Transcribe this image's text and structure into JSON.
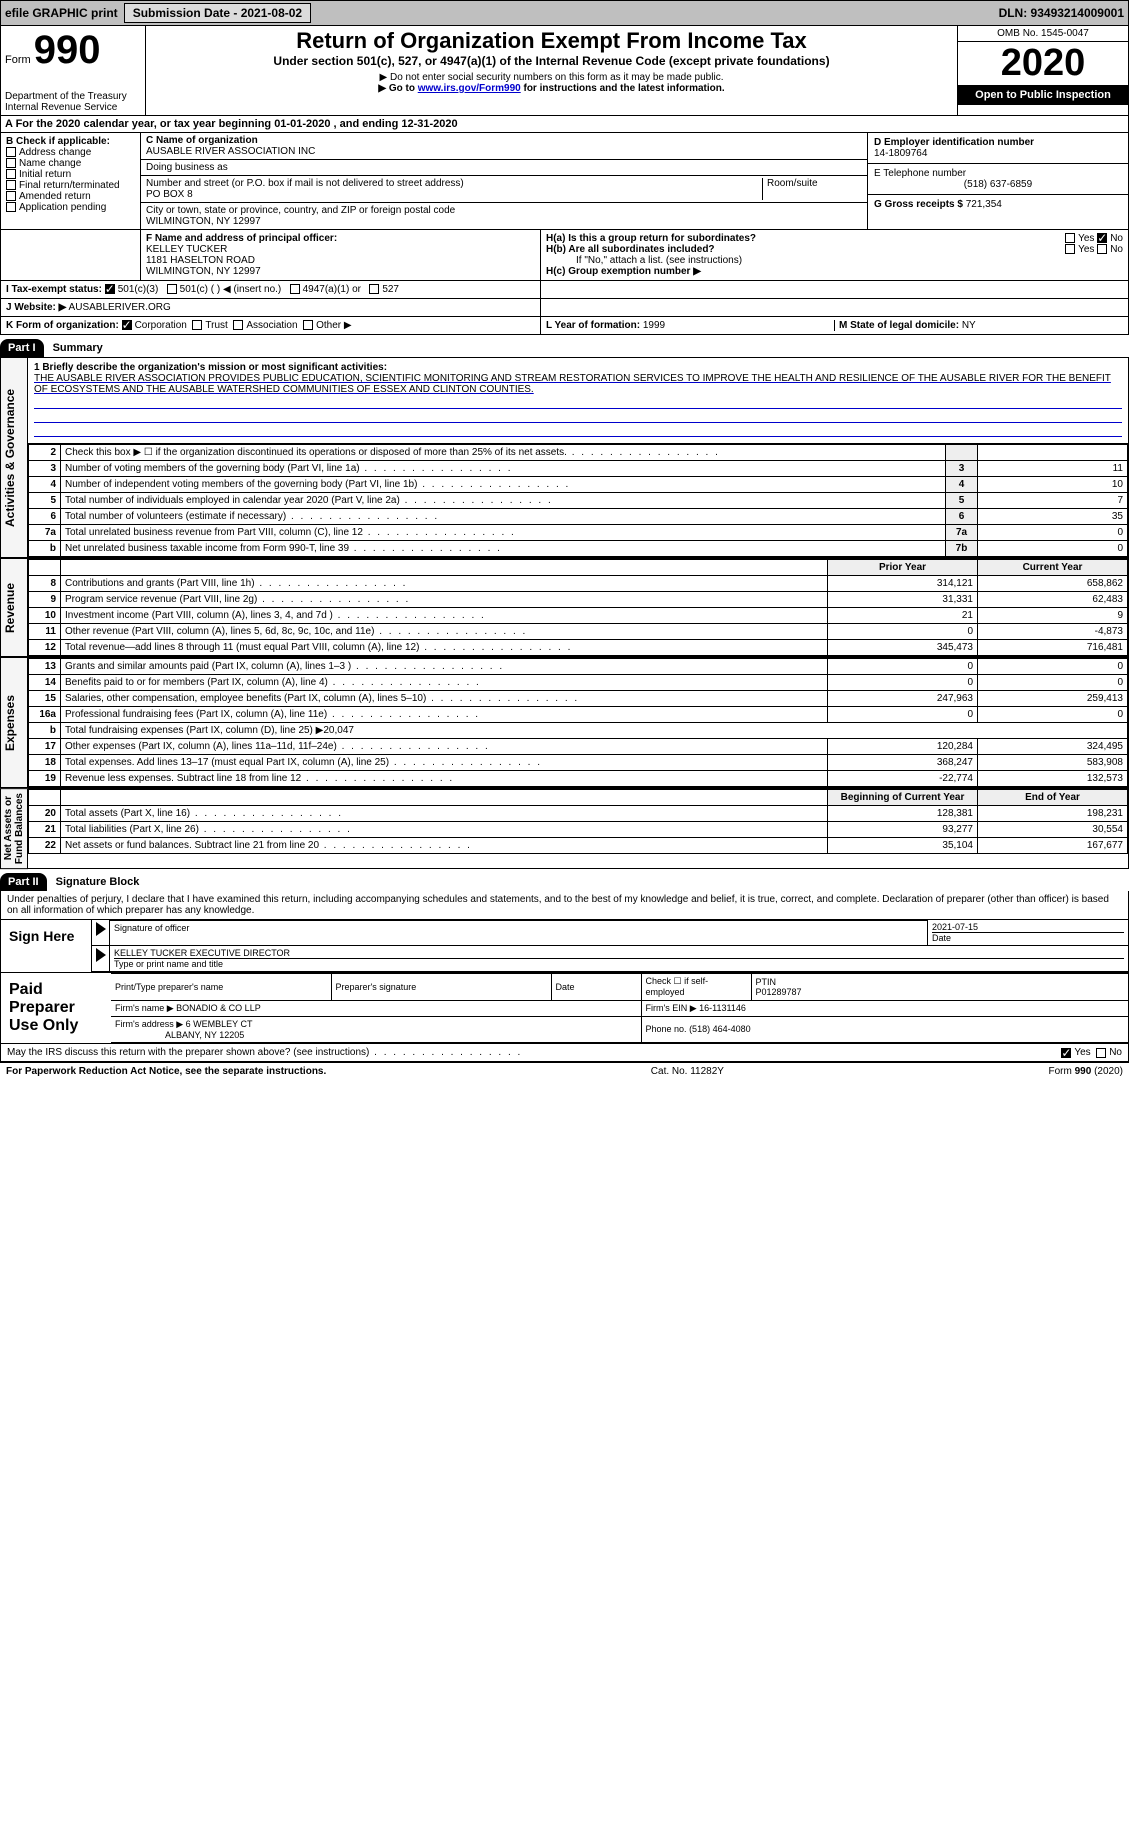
{
  "topbar": {
    "efile": "efile GRAPHIC print",
    "submission_label": "Submission Date - 2021-08-02",
    "dln": "DLN: 93493214009001"
  },
  "header": {
    "form_label": "Form",
    "form_number": "990",
    "dept": "Department of the Treasury\nInternal Revenue Service",
    "title": "Return of Organization Exempt From Income Tax",
    "subtitle": "Under section 501(c), 527, or 4947(a)(1) of the Internal Revenue Code (except private foundations)",
    "note1": "▶ Do not enter social security numbers on this form as it may be made public.",
    "note2_pre": "▶ Go to ",
    "note2_link": "www.irs.gov/Form990",
    "note2_post": " for instructions and the latest information.",
    "omb": "OMB No. 1545-0047",
    "year": "2020",
    "open": "Open to Public Inspection"
  },
  "sectionA": "A  For the 2020 calendar year, or tax year beginning 01-01-2020    , and ending 12-31-2020",
  "B": {
    "heading": "B Check if applicable:",
    "items": [
      "Address change",
      "Name change",
      "Initial return",
      "Final return/terminated",
      "Amended return",
      "Application pending"
    ]
  },
  "C": {
    "name_label": "C Name of organization",
    "name": "AUSABLE RIVER ASSOCIATION INC",
    "dba_label": "Doing business as",
    "dba": "",
    "addr_label": "Number and street (or P.O. box if mail is not delivered to street address)",
    "room_label": "Room/suite",
    "addr": "PO BOX 8",
    "city_label": "City or town, state or province, country, and ZIP or foreign postal code",
    "city": "WILMINGTON, NY  12997"
  },
  "D": {
    "label": "D Employer identification number",
    "value": "14-1809764"
  },
  "E": {
    "label": "E Telephone number",
    "value": "(518) 637-6859"
  },
  "G": {
    "label": "G Gross receipts $",
    "value": "721,354"
  },
  "F": {
    "label": "F  Name and address of principal officer:",
    "name": "KELLEY TUCKER",
    "addr1": "1181 HASELTON ROAD",
    "addr2": "WILMINGTON, NY  12997"
  },
  "H": {
    "a": "H(a)  Is this a group return for subordinates?",
    "b": "H(b)  Are all subordinates included?",
    "b_note": "If \"No,\" attach a list. (see instructions)",
    "c": "H(c)  Group exemption number ▶",
    "yes": "Yes",
    "no": "No"
  },
  "I": {
    "label": "I    Tax-exempt status:",
    "opts": [
      "501(c)(3)",
      "501(c) (  ) ◀ (insert no.)",
      "4947(a)(1) or",
      "527"
    ]
  },
  "J": {
    "label": "J   Website: ▶",
    "value": "AUSABLERIVER.ORG"
  },
  "K": {
    "label": "K Form of organization:",
    "opts": [
      "Corporation",
      "Trust",
      "Association",
      "Other ▶"
    ]
  },
  "L": {
    "label": "L Year of formation:",
    "value": "1999"
  },
  "M": {
    "label": "M State of legal domicile:",
    "value": "NY"
  },
  "part1": {
    "header": "Part I",
    "title": "Summary",
    "line1_label": "1   Briefly describe the organization's mission or most significant activities:",
    "mission": "THE AUSABLE RIVER ASSOCIATION PROVIDES PUBLIC EDUCATION, SCIENTIFIC MONITORING AND STREAM RESTORATION SERVICES TO IMPROVE THE HEALTH AND RESILIENCE OF THE AUSABLE RIVER FOR THE BENEFIT OF ECOSYSTEMS AND THE AUSABLE WATERSHED COMMUNITIES OF ESSEX AND CLINTON COUNTIES.",
    "vtabs": {
      "gov": "Activities & Governance",
      "rev": "Revenue",
      "exp": "Expenses",
      "net": "Net Assets or\nFund Balances"
    },
    "gov_lines": [
      {
        "n": "2",
        "t": "Check this box ▶ ☐ if the organization discontinued its operations or disposed of more than 25% of its net assets.",
        "c": "",
        "v": ""
      },
      {
        "n": "3",
        "t": "Number of voting members of the governing body (Part VI, line 1a)",
        "c": "3",
        "v": "11"
      },
      {
        "n": "4",
        "t": "Number of independent voting members of the governing body (Part VI, line 1b)",
        "c": "4",
        "v": "10"
      },
      {
        "n": "5",
        "t": "Total number of individuals employed in calendar year 2020 (Part V, line 2a)",
        "c": "5",
        "v": "7"
      },
      {
        "n": "6",
        "t": "Total number of volunteers (estimate if necessary)",
        "c": "6",
        "v": "35"
      },
      {
        "n": "7a",
        "t": "Total unrelated business revenue from Part VIII, column (C), line 12",
        "c": "7a",
        "v": "0"
      },
      {
        "n": "b",
        "t": "Net unrelated business taxable income from Form 990-T, line 39",
        "c": "7b",
        "v": "0"
      }
    ],
    "col_hdr_prior": "Prior Year",
    "col_hdr_current": "Current Year",
    "rev_lines": [
      {
        "n": "8",
        "t": "Contributions and grants (Part VIII, line 1h)",
        "p": "314,121",
        "c": "658,862"
      },
      {
        "n": "9",
        "t": "Program service revenue (Part VIII, line 2g)",
        "p": "31,331",
        "c": "62,483"
      },
      {
        "n": "10",
        "t": "Investment income (Part VIII, column (A), lines 3, 4, and 7d )",
        "p": "21",
        "c": "9"
      },
      {
        "n": "11",
        "t": "Other revenue (Part VIII, column (A), lines 5, 6d, 8c, 9c, 10c, and 11e)",
        "p": "0",
        "c": "-4,873"
      },
      {
        "n": "12",
        "t": "Total revenue—add lines 8 through 11 (must equal Part VIII, column (A), line 12)",
        "p": "345,473",
        "c": "716,481"
      }
    ],
    "exp_lines": [
      {
        "n": "13",
        "t": "Grants and similar amounts paid (Part IX, column (A), lines 1–3 )",
        "p": "0",
        "c": "0"
      },
      {
        "n": "14",
        "t": "Benefits paid to or for members (Part IX, column (A), line 4)",
        "p": "0",
        "c": "0"
      },
      {
        "n": "15",
        "t": "Salaries, other compensation, employee benefits (Part IX, column (A), lines 5–10)",
        "p": "247,963",
        "c": "259,413"
      },
      {
        "n": "16a",
        "t": "Professional fundraising fees (Part IX, column (A), line 11e)",
        "p": "0",
        "c": "0"
      },
      {
        "n": "b",
        "t": "Total fundraising expenses (Part IX, column (D), line 25) ▶20,047",
        "p": "",
        "c": ""
      },
      {
        "n": "17",
        "t": "Other expenses (Part IX, column (A), lines 11a–11d, 11f–24e)",
        "p": "120,284",
        "c": "324,495"
      },
      {
        "n": "18",
        "t": "Total expenses. Add lines 13–17 (must equal Part IX, column (A), line 25)",
        "p": "368,247",
        "c": "583,908"
      },
      {
        "n": "19",
        "t": "Revenue less expenses. Subtract line 18 from line 12",
        "p": "-22,774",
        "c": "132,573"
      }
    ],
    "net_hdr_begin": "Beginning of Current Year",
    "net_hdr_end": "End of Year",
    "net_lines": [
      {
        "n": "20",
        "t": "Total assets (Part X, line 16)",
        "p": "128,381",
        "c": "198,231"
      },
      {
        "n": "21",
        "t": "Total liabilities (Part X, line 26)",
        "p": "93,277",
        "c": "30,554"
      },
      {
        "n": "22",
        "t": "Net assets or fund balances. Subtract line 21 from line 20",
        "p": "35,104",
        "c": "167,677"
      }
    ]
  },
  "part2": {
    "header": "Part II",
    "title": "Signature Block",
    "penalty": "Under penalties of perjury, I declare that I have examined this return, including accompanying schedules and statements, and to the best of my knowledge and belief, it is true, correct, and complete. Declaration of preparer (other than officer) is based on all information of which preparer has any knowledge.",
    "sign_here": "Sign Here",
    "sig_officer": "Signature of officer",
    "sig_date": "2021-07-15",
    "date_lbl": "Date",
    "officer_name": "KELLEY TUCKER  EXECUTIVE DIRECTOR",
    "type_name": "Type or print name and title",
    "paid": "Paid Preparer Use Only",
    "prep_name_lbl": "Print/Type preparer's name",
    "prep_sig_lbl": "Preparer's signature",
    "prep_date_lbl": "Date",
    "prep_check": "Check ☐ if self-employed",
    "ptin_lbl": "PTIN",
    "ptin": "P01289787",
    "firm_name_lbl": "Firm's name    ▶",
    "firm_name": "BONADIO & CO LLP",
    "firm_ein_lbl": "Firm's EIN ▶",
    "firm_ein": "16-1131146",
    "firm_addr_lbl": "Firm's address ▶",
    "firm_addr": "6 WEMBLEY CT",
    "firm_city": "ALBANY, NY  12205",
    "phone_lbl": "Phone no.",
    "phone": "(518) 464-4080",
    "discuss": "May the IRS discuss this return with the preparer shown above? (see instructions)",
    "yes": "Yes",
    "no": "No"
  },
  "footer": {
    "left": "For Paperwork Reduction Act Notice, see the separate instructions.",
    "mid": "Cat. No. 11282Y",
    "right": "Form 990 (2020)"
  }
}
